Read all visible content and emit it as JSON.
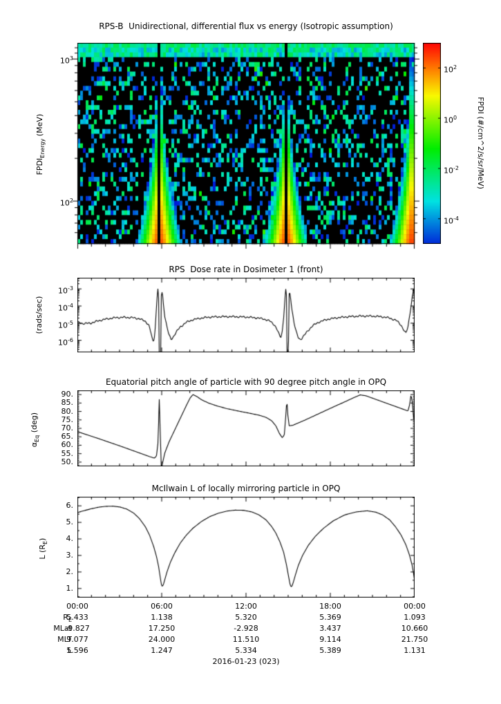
{
  "date_label": "2016-01-23 (023)",
  "xaxis": {
    "ticks": [
      "00:00",
      "06:00",
      "12:00",
      "18:00",
      "00:00"
    ]
  },
  "spectrogram": {
    "title": "RPS-B  Unidirectional, differential flux vs energy (Isotropic assumption)",
    "ylabel_main": "FPDI",
    "ylabel_sub": "Energy",
    "ylabel_unit": " (MeV)",
    "yticks": [
      "10^3",
      "10^2"
    ],
    "colorbar": {
      "label": "FPDI (#/cm^2/s/sr/MeV)",
      "ticks": [
        "10^2",
        "10^0",
        "10^-2",
        "10^-4"
      ]
    }
  },
  "dose": {
    "title": "RPS  Dose rate in Dosimeter 1 (front)",
    "ylabel": "(rads/sec)",
    "yticks": [
      "10^-3",
      "10^-4",
      "10^-5",
      "10^-6"
    ]
  },
  "pitch": {
    "title": "Equatorial pitch angle of particle with 90 degree pitch angle in OPQ",
    "ylabel_main": "α",
    "ylabel_sub": "Eq",
    "ylabel_unit": " (deg)",
    "yticks": [
      "90.",
      "85.",
      "80.",
      "75.",
      "70.",
      "65.",
      "60.",
      "55.",
      "50."
    ]
  },
  "lshell": {
    "title": "McIlwain L of locally mirroring particle in OPQ",
    "ylabel_main": "L (R",
    "ylabel_sub": "E",
    "ylabel_unit": ")",
    "yticks": [
      "6.",
      "5.",
      "4.",
      "3.",
      "2.",
      "1."
    ]
  },
  "ephemeris_table": {
    "rows": [
      {
        "key": "re",
        "label_main": "R",
        "label_sub": "E",
        "values": [
          "5.433",
          "1.138",
          "5.320",
          "5.369",
          "1.093"
        ]
      },
      {
        "key": "mlat",
        "label_main": "MLat",
        "label_sub": "",
        "values": [
          "-9.827",
          "17.250",
          "-2.928",
          "3.437",
          "10.660"
        ]
      },
      {
        "key": "mlt",
        "label_main": "MLT",
        "label_sub": "",
        "values": [
          "9.077",
          "24.000",
          "11.510",
          "9.114",
          "21.750"
        ]
      },
      {
        "key": "l",
        "label_main": "L",
        "label_sub": "",
        "values": [
          "5.596",
          "1.247",
          "5.334",
          "5.389",
          "1.131"
        ]
      }
    ]
  },
  "chart_data": [
    {
      "type": "heatmap",
      "panel": "rps_b_flux_spectrogram",
      "title": "RPS-B  Unidirectional, differential flux vs energy (Isotropic assumption)",
      "x_axis": "time (hours, 2016-01-23)",
      "x_range_hours": [
        0,
        24
      ],
      "x_tick_labels": [
        "00:00",
        "06:00",
        "12:00",
        "18:00",
        "00:00"
      ],
      "y_axis": "FPDI_Energy (MeV), log scale",
      "y_range_mev": [
        50,
        1300
      ],
      "y_tick_labels": [
        "10^3",
        "10^2"
      ],
      "z_axis": "FPDI (#/cm^2/s/sr/MeV), log color scale",
      "z_range": [
        1e-05,
        1000.0
      ],
      "colorbar_tick_values": [
        100,
        1,
        0.01,
        0.0001
      ],
      "perigee_pass_hours": [
        5.83,
        14.85,
        23.8
      ],
      "pattern": "black background with sparse low-flux blue/cyan speckle; bright red-yellow-green flux wedges (widest at low energy) around each perigee pass with a narrow black data-gap line at wedge center; persistent blue band across the top energy bins"
    },
    {
      "type": "line",
      "panel": "dose_rate",
      "title": "RPS  Dose rate in Dosimeter 1 (front)",
      "ylabel": "(rads/sec)",
      "yscale": "log",
      "ylim": [
        2e-07,
        0.0045
      ],
      "x_hours": [
        0,
        0.4,
        0.9,
        1.5,
        2.1,
        2.7,
        3.3,
        3.9,
        4.4,
        4.8,
        5.05,
        5.2,
        5.3,
        5.38,
        5.45,
        5.52,
        5.6,
        5.68,
        5.73,
        5.76,
        5.79,
        5.9,
        5.93,
        5.98,
        6.03,
        6.1,
        6.2,
        6.35,
        6.5,
        6.65,
        6.8,
        7.0,
        7.3,
        7.7,
        8.2,
        8.8,
        9.5,
        10.3,
        11.1,
        11.9,
        12.6,
        13.2,
        13.7,
        14.0,
        14.2,
        14.35,
        14.45,
        14.55,
        14.65,
        14.75,
        14.82,
        14.86,
        14.89,
        14.99,
        15.03,
        15.08,
        15.15,
        15.25,
        15.4,
        15.55,
        15.7,
        15.85,
        16.0,
        16.3,
        16.7,
        17.2,
        17.8,
        18.5,
        19.3,
        20.1,
        20.9,
        21.6,
        22.2,
        22.7,
        23.0,
        23.2,
        23.35,
        23.5,
        23.65,
        23.8,
        23.9,
        24.0
      ],
      "y_rads_per_sec": [
        1.1e-05,
        9.5e-06,
        1e-05,
        1.4e-05,
        1.8e-05,
        2.1e-05,
        2.2e-05,
        2.1e-05,
        1.8e-05,
        1.3e-05,
        8e-06,
        3e-06,
        1.2e-06,
        8e-07,
        1.5e-06,
        6e-06,
        8e-05,
        0.0008,
        0.0014,
        0.0002,
        1e-07,
        1e-07,
        0.0003,
        0.0007,
        0.0005,
        0.00012,
        2.5e-05,
        6e-06,
        2e-06,
        1.1e-06,
        1.6e-06,
        3e-06,
        6e-06,
        1.1e-05,
        1.6e-05,
        2e-05,
        2.3e-05,
        2.4e-05,
        2.4e-05,
        2.3e-05,
        2.1e-05,
        1.8e-05,
        1.3e-05,
        8e-06,
        4e-06,
        2e-06,
        1.5e-06,
        3e-06,
        2e-05,
        0.0003,
        0.0012,
        0.0003,
        1e-07,
        1e-07,
        0.0004,
        0.00065,
        0.0003,
        6e-05,
        1e-05,
        3e-06,
        1.4e-06,
        1.1e-06,
        1.5e-06,
        3e-06,
        7e-06,
        1.2e-05,
        1.7e-05,
        2.1e-05,
        2.4e-05,
        2.6e-05,
        2.6e-05,
        2.4e-05,
        2e-05,
        1.4e-05,
        8e-06,
        4e-06,
        2.5e-06,
        6e-06,
        4e-05,
        0.0003,
        0.0008,
        0.0014
      ]
    },
    {
      "type": "line",
      "panel": "equatorial_pitch_angle",
      "title": "Equatorial pitch angle of particle with 90 degree pitch angle in OPQ",
      "ylabel": "alpha_Eq (deg)",
      "yscale": "linear",
      "ylim": [
        47.5,
        92.5
      ],
      "x_hours": [
        0,
        0.8,
        1.6,
        2.4,
        3.2,
        4.0,
        4.6,
        5.1,
        5.45,
        5.6,
        5.72,
        5.8,
        5.88,
        5.95,
        6.05,
        6.2,
        6.5,
        6.9,
        7.3,
        7.7,
        8.0,
        8.2,
        8.45,
        8.8,
        9.3,
        9.9,
        10.6,
        11.4,
        12.2,
        12.9,
        13.4,
        13.8,
        14.1,
        14.35,
        14.55,
        14.7,
        14.82,
        14.88,
        14.95,
        15.05,
        15.3,
        15.7,
        16.2,
        16.8,
        17.5,
        18.2,
        18.9,
        19.6,
        20.1,
        20.5,
        21.0,
        21.6,
        22.2,
        22.8,
        23.3,
        23.5,
        23.62,
        23.72,
        23.8,
        23.9,
        24.0
      ],
      "y_deg": [
        68,
        65.8,
        63.6,
        61.3,
        59,
        56.6,
        54.8,
        53.3,
        52.4,
        53.5,
        62,
        88,
        65,
        46,
        50,
        55.5,
        62,
        69,
        76,
        83,
        88,
        90,
        89,
        87,
        85,
        83.3,
        81.7,
        80.3,
        79,
        77.8,
        76.5,
        74.5,
        71.5,
        67,
        64.5,
        66,
        79,
        87,
        78,
        71.5,
        71.8,
        73.2,
        75,
        77.3,
        80,
        82.7,
        85.3,
        88,
        89.8,
        89.3,
        87.8,
        86,
        84.2,
        82.4,
        80.9,
        80.3,
        84,
        90,
        86,
        77,
        70.5
      ]
    },
    {
      "type": "line",
      "panel": "mcilwain_l",
      "title": "McIlwain L of locally mirroring particle in OPQ",
      "ylabel": "L (R_E)",
      "yscale": "linear",
      "ylim": [
        0.45,
        6.55
      ],
      "x_hours": [
        0,
        0.5,
        1.0,
        1.5,
        2.0,
        2.5,
        3.0,
        3.5,
        4.0,
        4.4,
        4.8,
        5.1,
        5.4,
        5.6,
        5.75,
        5.85,
        5.92,
        5.97,
        6.02,
        6.1,
        6.2,
        6.35,
        6.6,
        6.9,
        7.3,
        7.7,
        8.2,
        8.8,
        9.4,
        10.0,
        10.6,
        11.2,
        11.8,
        12.4,
        12.9,
        13.4,
        13.8,
        14.1,
        14.4,
        14.65,
        14.85,
        15.0,
        15.1,
        15.17,
        15.25,
        15.35,
        15.5,
        15.7,
        16.0,
        16.4,
        16.9,
        17.5,
        18.2,
        19.0,
        19.8,
        20.6,
        21.2,
        21.7,
        22.2,
        22.6,
        23.0,
        23.35,
        23.6,
        23.8,
        23.92,
        24.0
      ],
      "y_l": [
        5.6,
        5.72,
        5.83,
        5.92,
        5.97,
        5.98,
        5.93,
        5.8,
        5.55,
        5.22,
        4.75,
        4.25,
        3.55,
        2.95,
        2.35,
        1.8,
        1.4,
        1.18,
        1.12,
        1.25,
        1.55,
        2.0,
        2.6,
        3.15,
        3.75,
        4.2,
        4.65,
        5.05,
        5.35,
        5.55,
        5.68,
        5.74,
        5.73,
        5.63,
        5.45,
        5.15,
        4.75,
        4.35,
        3.8,
        3.2,
        2.45,
        1.75,
        1.3,
        1.1,
        1.15,
        1.4,
        1.85,
        2.4,
        3.0,
        3.6,
        4.15,
        4.65,
        5.1,
        5.45,
        5.63,
        5.7,
        5.62,
        5.45,
        5.15,
        4.75,
        4.25,
        3.65,
        3.05,
        2.4,
        1.8,
        1.25
      ]
    }
  ]
}
